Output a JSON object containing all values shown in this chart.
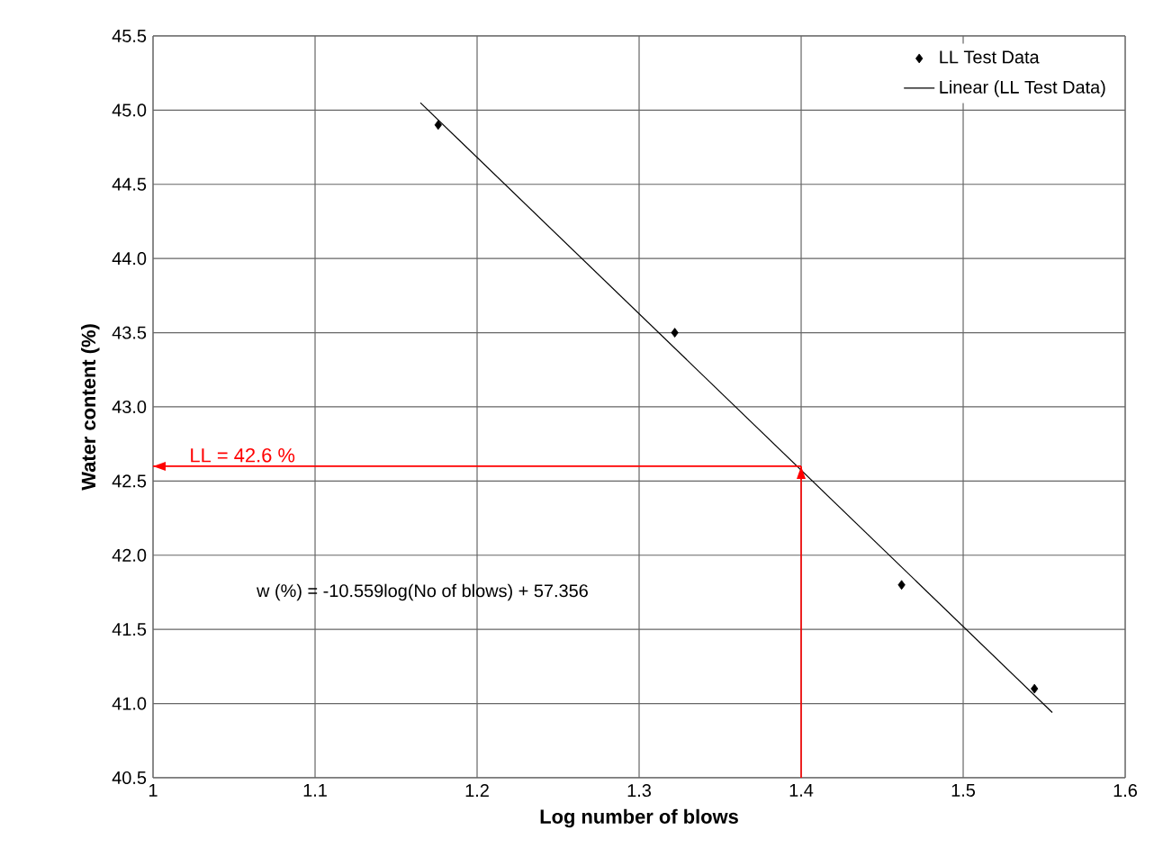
{
  "chart_data": {
    "type": "scatter",
    "xlabel": "Log number of blows",
    "ylabel": "Water content (%)",
    "xlim": [
      1,
      1.6
    ],
    "ylim": [
      40.5,
      45.5
    ],
    "xticks": [
      1,
      1.1,
      1.2,
      1.3,
      1.4,
      1.5,
      1.6
    ],
    "yticks": [
      40.5,
      {
        "value": 41,
        "label": "41.0"
      },
      41.5,
      {
        "value": 42,
        "label": "42.0"
      },
      42.5,
      {
        "value": 43,
        "label": "43.0"
      },
      43.5,
      {
        "value": 44,
        "label": "44.0"
      },
      44.5,
      {
        "value": 45,
        "label": "45.0"
      },
      45.5
    ],
    "grid": true,
    "legend": "top right",
    "series": [
      {
        "name": "LL Test Data",
        "marker": "diamond",
        "color": "#000000",
        "x": [
          1.176,
          1.322,
          1.462,
          1.544
        ],
        "values": [
          44.9,
          43.5,
          41.8,
          41.1
        ]
      },
      {
        "name": "Linear (LL Test Data)",
        "type": "line",
        "marker": "none",
        "color": "#000000",
        "x": [
          1.165,
          1.555
        ],
        "values": [
          45.05,
          40.94
        ]
      }
    ],
    "ref_lines": [
      {
        "axis": "y",
        "value": 42.6,
        "label": "LL = 42.6 %",
        "color": "#ff0000"
      },
      {
        "axis": "x",
        "value": 1.4,
        "color": "#ff0000"
      }
    ],
    "annotations": [
      "w (%) = -10.559log(No of blows) + 57.356"
    ]
  }
}
